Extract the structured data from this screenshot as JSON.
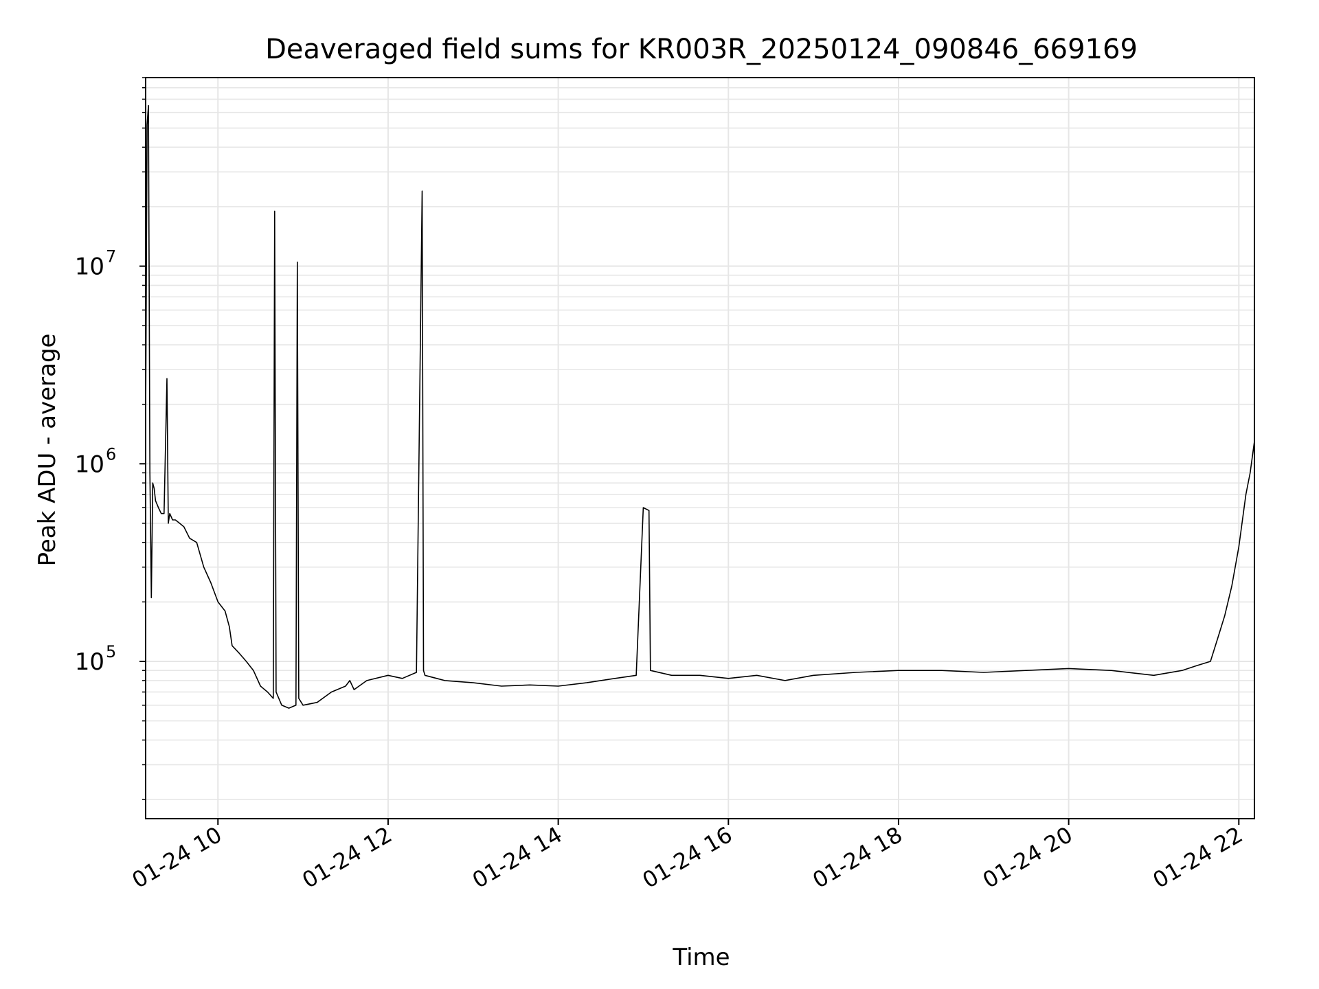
{
  "chart_data": {
    "type": "line",
    "title": "Deaveraged field sums for KR003R_20250124_090846_669169",
    "xlabel": "Time",
    "ylabel": "Peak ADU - average",
    "x_axis": {
      "kind": "datetime",
      "range": [
        "2025-01-24 09:09",
        "2025-01-24 22:11"
      ],
      "ticks": [
        "2025-01-24 10:00",
        "2025-01-24 12:00",
        "2025-01-24 14:00",
        "2025-01-24 16:00",
        "2025-01-24 18:00",
        "2025-01-24 20:00",
        "2025-01-24 22:00"
      ],
      "tick_labels": [
        "01-24 10",
        "01-24 12",
        "01-24 14",
        "01-24 16",
        "01-24 18",
        "01-24 20",
        "01-24 22"
      ]
    },
    "y_axis": {
      "scale": "log",
      "range": [
        16000,
        90000000
      ],
      "ticks": [
        100000,
        1000000,
        10000000
      ],
      "tick_labels": [
        "10",
        "10",
        "10"
      ],
      "tick_exponents": [
        "5",
        "6",
        "7"
      ]
    },
    "grid": true,
    "line_color": "#000000",
    "grid_color": "#e6e6e6",
    "series": [
      {
        "x": [
          "2025-01-24 09:09",
          "2025-01-24 09:10",
          "2025-01-24 09:11",
          "2025-01-24 09:12",
          "2025-01-24 09:13",
          "2025-01-24 09:14",
          "2025-01-24 09:15",
          "2025-01-24 09:16",
          "2025-01-24 09:18",
          "2025-01-24 09:20",
          "2025-01-24 09:22",
          "2025-01-24 09:24",
          "2025-01-24 09:25",
          "2025-01-24 09:26",
          "2025-01-24 09:28",
          "2025-01-24 09:30",
          "2025-01-24 09:33",
          "2025-01-24 09:36",
          "2025-01-24 09:40",
          "2025-01-24 09:45",
          "2025-01-24 09:50",
          "2025-01-24 09:55",
          "2025-01-24 10:00",
          "2025-01-24 10:05",
          "2025-01-24 10:08",
          "2025-01-24 10:10",
          "2025-01-24 10:15",
          "2025-01-24 10:20",
          "2025-01-24 10:25",
          "2025-01-24 10:30",
          "2025-01-24 10:35",
          "2025-01-24 10:39",
          "2025-01-24 10:40",
          "2025-01-24 10:41",
          "2025-01-24 10:45",
          "2025-01-24 10:50",
          "2025-01-24 10:55",
          "2025-01-24 10:56",
          "2025-01-24 10:57",
          "2025-01-24 11:00",
          "2025-01-24 11:10",
          "2025-01-24 11:20",
          "2025-01-24 11:30",
          "2025-01-24 11:33",
          "2025-01-24 11:36",
          "2025-01-24 11:45",
          "2025-01-24 12:00",
          "2025-01-24 12:10",
          "2025-01-24 12:20",
          "2025-01-24 12:24",
          "2025-01-24 12:25",
          "2025-01-24 12:26",
          "2025-01-24 12:40",
          "2025-01-24 13:00",
          "2025-01-24 13:20",
          "2025-01-24 13:40",
          "2025-01-24 14:00",
          "2025-01-24 14:20",
          "2025-01-24 14:40",
          "2025-01-24 14:55",
          "2025-01-24 15:00",
          "2025-01-24 15:04",
          "2025-01-24 15:05",
          "2025-01-24 15:20",
          "2025-01-24 15:40",
          "2025-01-24 16:00",
          "2025-01-24 16:20",
          "2025-01-24 16:40",
          "2025-01-24 17:00",
          "2025-01-24 17:30",
          "2025-01-24 18:00",
          "2025-01-24 18:30",
          "2025-01-24 19:00",
          "2025-01-24 19:30",
          "2025-01-24 20:00",
          "2025-01-24 20:30",
          "2025-01-24 21:00",
          "2025-01-24 21:20",
          "2025-01-24 21:30",
          "2025-01-24 21:40",
          "2025-01-24 21:45",
          "2025-01-24 21:50",
          "2025-01-24 21:55",
          "2025-01-24 22:00",
          "2025-01-24 22:05",
          "2025-01-24 22:08",
          "2025-01-24 22:11"
        ],
        "y": [
          1600000,
          52000000,
          65000000,
          900000,
          210000,
          800000,
          750000,
          650000,
          600000,
          560000,
          560000,
          2700000,
          500000,
          560000,
          520000,
          520000,
          500000,
          480000,
          420000,
          400000,
          300000,
          250000,
          200000,
          180000,
          150000,
          120000,
          110000,
          100000,
          90000,
          75000,
          70000,
          65000,
          19000000,
          70000,
          60000,
          58000,
          60000,
          10500000,
          65000,
          60000,
          62000,
          70000,
          75000,
          80000,
          72000,
          80000,
          85000,
          82000,
          88000,
          24000000,
          90000,
          85000,
          80000,
          78000,
          75000,
          76000,
          75000,
          78000,
          82000,
          85000,
          600000,
          580000,
          90000,
          85000,
          85000,
          82000,
          85000,
          80000,
          85000,
          88000,
          90000,
          90000,
          88000,
          90000,
          92000,
          90000,
          85000,
          90000,
          95000,
          100000,
          130000,
          170000,
          240000,
          380000,
          700000,
          900000,
          1300000
        ]
      }
    ]
  }
}
